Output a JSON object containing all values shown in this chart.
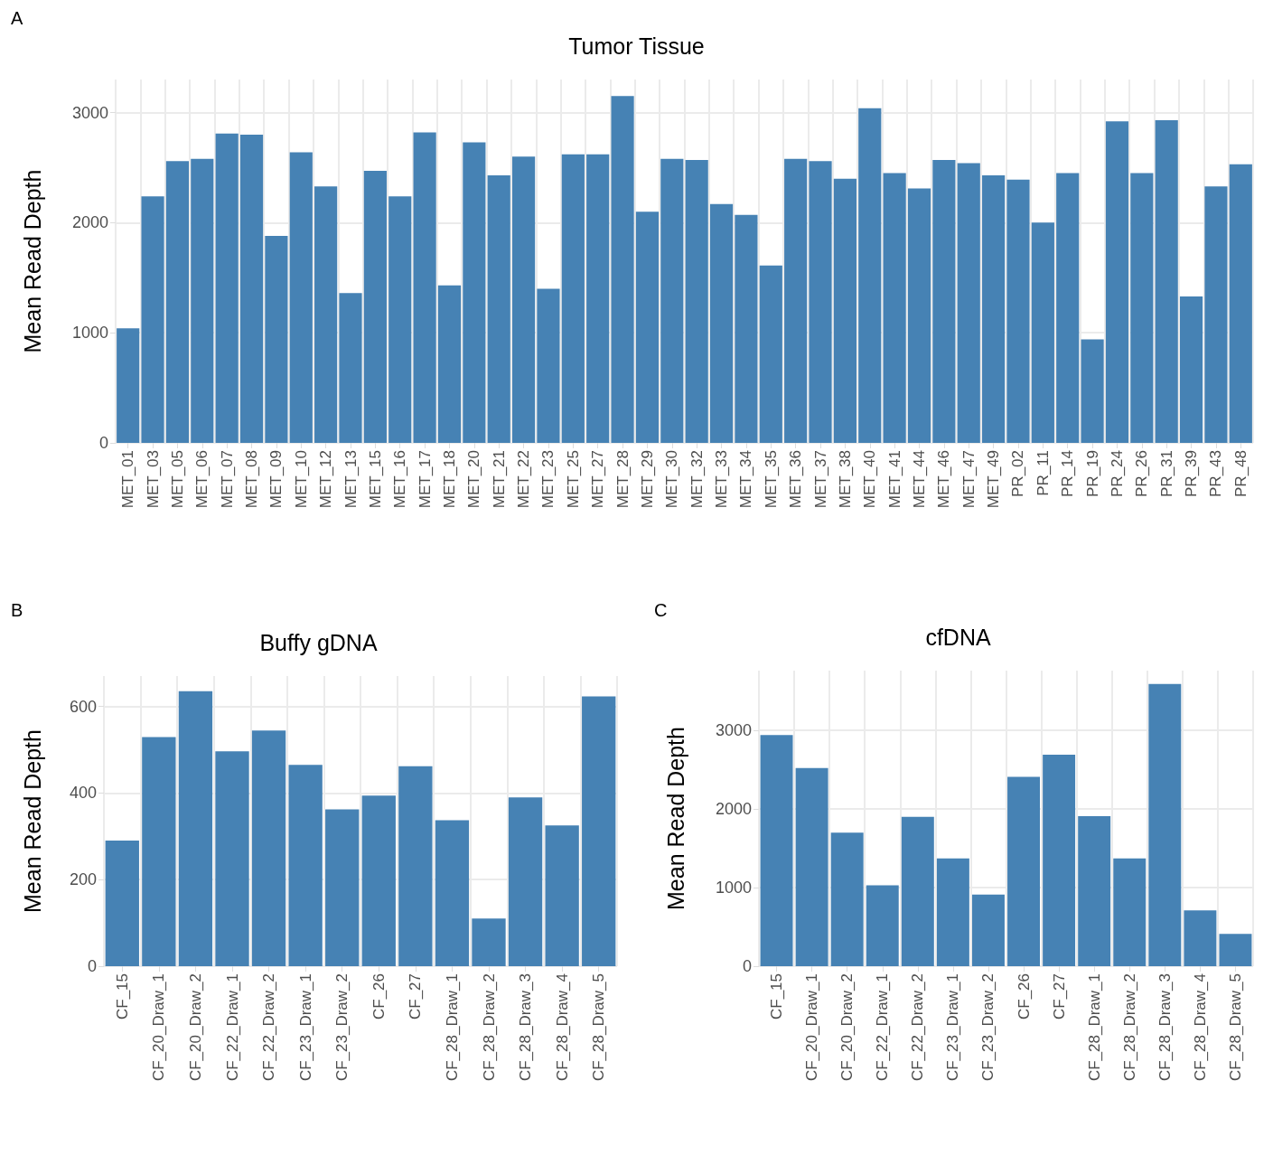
{
  "chart_data": [
    {
      "type": "bar",
      "title": "Tumor Tissue",
      "ylabel": "Mean Read Depth",
      "annotations": [
        "A"
      ],
      "categories": [
        "MET_01",
        "MET_03",
        "MET_05",
        "MET_06",
        "MET_07",
        "MET_08",
        "MET_09",
        "MET_10",
        "MET_12",
        "MET_13",
        "MET_15",
        "MET_16",
        "MET_17",
        "MET_18",
        "MET_20",
        "MET_21",
        "MET_22",
        "MET_23",
        "MET_25",
        "MET_27",
        "MET_28",
        "MET_29",
        "MET_30",
        "MET_32",
        "MET_33",
        "MET_34",
        "MET_35",
        "MET_36",
        "MET_37",
        "MET_38",
        "MET_40",
        "MET_41",
        "MET_44",
        "MET_46",
        "MET_47",
        "MET_49",
        "PR_02",
        "PR_11",
        "PR_14",
        "PR_19",
        "PR_24",
        "PR_26",
        "PR_31",
        "PR_39",
        "PR_43",
        "PR_48"
      ],
      "values": [
        1040,
        2240,
        2560,
        2580,
        2810,
        2800,
        1880,
        2640,
        2330,
        1360,
        2470,
        2240,
        2820,
        1430,
        2730,
        2430,
        2600,
        1400,
        2620,
        2620,
        3150,
        2100,
        2580,
        2570,
        2170,
        2070,
        1610,
        2580,
        2560,
        2400,
        3040,
        2450,
        2310,
        2570,
        2540,
        2430,
        2390,
        2000,
        2450,
        940,
        2920,
        2450,
        2930,
        1330,
        2330,
        2530
      ],
      "color": "#4682b4",
      "ylim": [
        0,
        3300
      ],
      "yticks": [
        0,
        1000,
        2000,
        3000
      ],
      "grid": true
    },
    {
      "type": "bar",
      "title": "Buffy gDNA",
      "ylabel": "Mean Read Depth",
      "annotations": [
        "B"
      ],
      "categories": [
        "CF_15",
        "CF_20_Draw_1",
        "CF_20_Draw_2",
        "CF_22_Draw_1",
        "CF_22_Draw_2",
        "CF_23_Draw_1",
        "CF_23_Draw_2",
        "CF_26",
        "CF_27",
        "CF_28_Draw_1",
        "CF_28_Draw_2",
        "CF_28_Draw_3",
        "CF_28_Draw_4",
        "CF_28_Draw_5"
      ],
      "values": [
        290,
        529,
        635,
        496,
        544,
        465,
        362,
        394,
        462,
        337,
        110,
        390,
        325,
        623
      ],
      "color": "#4682b4",
      "ylim": [
        0,
        670
      ],
      "yticks": [
        0,
        200,
        400,
        600
      ],
      "grid": true
    },
    {
      "type": "bar",
      "title": "cfDNA",
      "ylabel": "Mean Read Depth",
      "annotations": [
        "C"
      ],
      "categories": [
        "CF_15",
        "CF_20_Draw_1",
        "CF_20_Draw_2",
        "CF_22_Draw_1",
        "CF_22_Draw_2",
        "CF_23_Draw_1",
        "CF_23_Draw_2",
        "CF_26",
        "CF_27",
        "CF_28_Draw_1",
        "CF_28_Draw_2",
        "CF_28_Draw_3",
        "CF_28_Draw_4",
        "CF_28_Draw_5"
      ],
      "values": [
        2940,
        2520,
        1700,
        1030,
        1900,
        1370,
        910,
        2410,
        2690,
        1910,
        1370,
        3590,
        710,
        410
      ],
      "color": "#4682b4",
      "ylim": [
        0,
        3760
      ],
      "yticks": [
        0,
        1000,
        2000,
        3000
      ],
      "grid": true
    }
  ]
}
